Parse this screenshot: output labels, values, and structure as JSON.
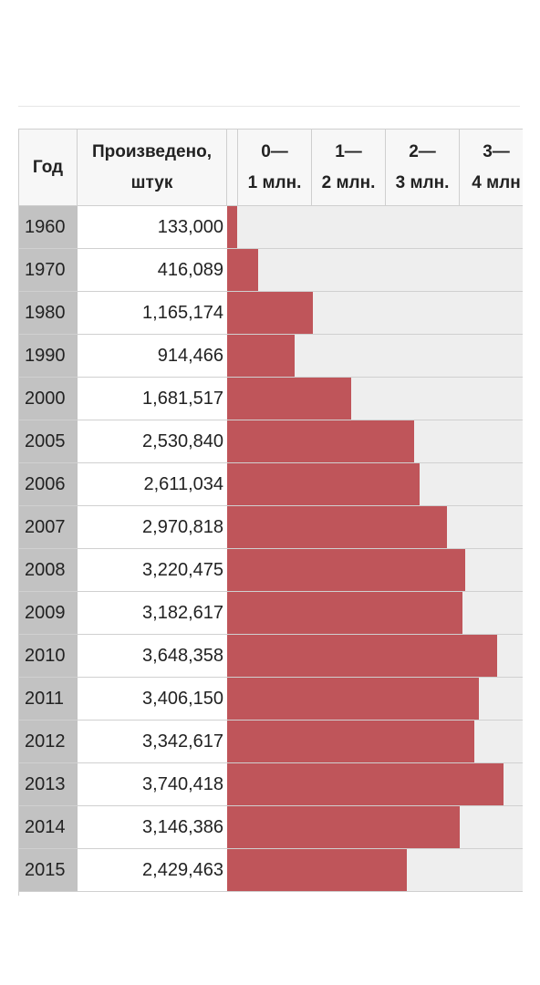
{
  "header": {
    "year": "Год",
    "produced_line1": "Произведено,",
    "produced_line2": "штук",
    "scale": [
      {
        "top": "0—",
        "bottom": "1 млн."
      },
      {
        "top": "1—",
        "bottom": "2 млн."
      },
      {
        "top": "2—",
        "bottom": "3 млн."
      },
      {
        "top": "3—",
        "bottom": "4 млн"
      }
    ]
  },
  "colors": {
    "bar": "#bf555a",
    "track": "#eeeeee",
    "year_cell": "#c2c2c2"
  },
  "rows": [
    {
      "year": "1960",
      "value_label": "133,000"
    },
    {
      "year": "1970",
      "value_label": "416,089"
    },
    {
      "year": "1980",
      "value_label": "1,165,174"
    },
    {
      "year": "1990",
      "value_label": "914,466"
    },
    {
      "year": "2000",
      "value_label": "1,681,517"
    },
    {
      "year": "2005",
      "value_label": "2,530,840"
    },
    {
      "year": "2006",
      "value_label": "2,611,034"
    },
    {
      "year": "2007",
      "value_label": "2,970,818"
    },
    {
      "year": "2008",
      "value_label": "3,220,475"
    },
    {
      "year": "2009",
      "value_label": "3,182,617"
    },
    {
      "year": "2010",
      "value_label": "3,648,358"
    },
    {
      "year": "2011",
      "value_label": "3,406,150"
    },
    {
      "year": "2012",
      "value_label": "3,342,617"
    },
    {
      "year": "2013",
      "value_label": "3,740,418"
    },
    {
      "year": "2014",
      "value_label": "3,146,386"
    },
    {
      "year": "2015",
      "value_label": "2,429,463"
    }
  ],
  "chart_data": {
    "type": "bar",
    "orientation": "horizontal",
    "categories": [
      "1960",
      "1970",
      "1980",
      "1990",
      "2000",
      "2005",
      "2006",
      "2007",
      "2008",
      "2009",
      "2010",
      "2011",
      "2012",
      "2013",
      "2014",
      "2015"
    ],
    "values": [
      133000,
      416089,
      1165174,
      914466,
      1681517,
      2530840,
      2611034,
      2970818,
      3220475,
      3182617,
      3648358,
      3406150,
      3342617,
      3740418,
      3146386,
      2429463
    ],
    "xlim": [
      0,
      4000000
    ],
    "grid": false
  }
}
